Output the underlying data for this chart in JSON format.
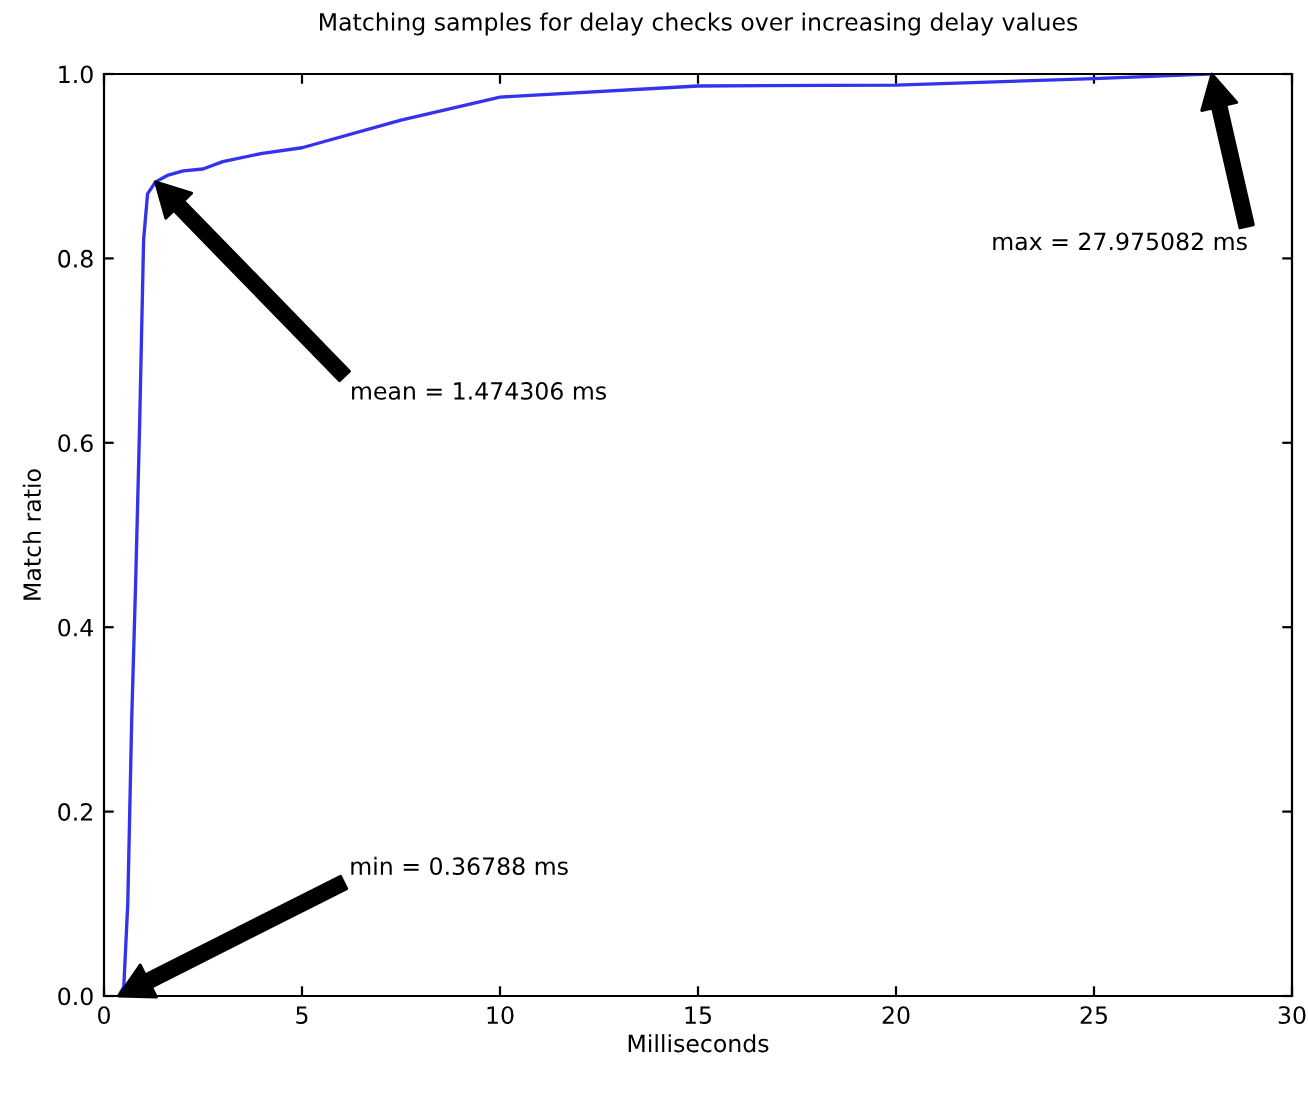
{
  "chart_data": {
    "type": "line",
    "title": "Matching samples for delay checks over increasing delay values",
    "xlabel": "Milliseconds",
    "ylabel": "Match ratio",
    "series": [
      {
        "color": "#3333ee",
        "x": [
          0.37,
          0.5,
          0.6,
          0.65,
          0.7,
          0.8,
          0.9,
          1.0,
          1.1,
          1.3,
          1.6,
          2.0,
          2.5,
          3.0,
          4.0,
          5.0,
          7.5,
          10.0,
          15.0,
          20.0,
          25.0,
          27.975
        ],
        "values": [
          0.0,
          0.01,
          0.1,
          0.2,
          0.3,
          0.45,
          0.62,
          0.82,
          0.87,
          0.883,
          0.89,
          0.895,
          0.897,
          0.905,
          0.914,
          0.92,
          0.95,
          0.975,
          0.987,
          0.988,
          0.995,
          1.0
        ]
      }
    ],
    "xlim": [
      0,
      30
    ],
    "ylim": [
      0,
      1.0
    ],
    "xticks": [
      0,
      5,
      10,
      15,
      20,
      25,
      30
    ],
    "yticks": [
      {
        "value": 0,
        "label": "0.0"
      },
      0.2,
      0.4,
      0.6,
      0.8,
      {
        "value": 1,
        "label": "1.0"
      }
    ],
    "grid": false,
    "marker": "none",
    "line_style": "solid",
    "annotations": [
      "min = 0.36788 ms",
      "mean = 1.474306 ms",
      "max = 27.975082 ms"
    ]
  }
}
